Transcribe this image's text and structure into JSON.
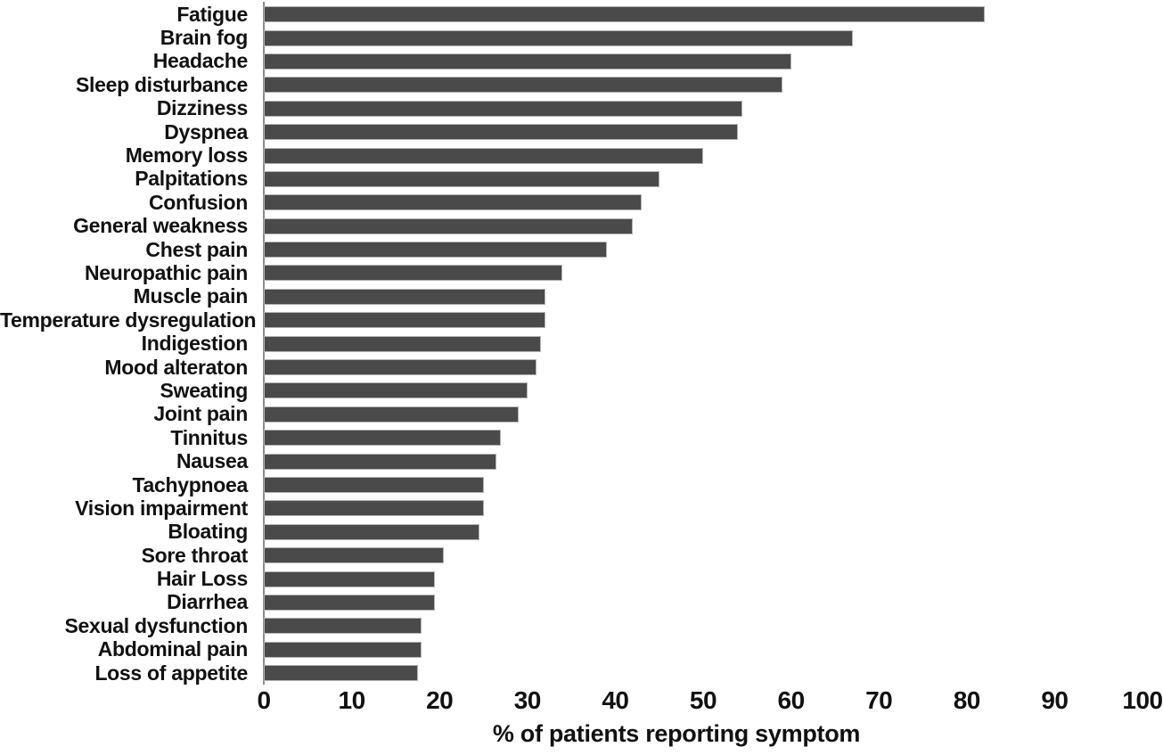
{
  "chart_data": {
    "type": "bar",
    "orientation": "horizontal",
    "title": "",
    "xlabel": "% of patients reporting symptom",
    "ylabel": "",
    "xlim": [
      0,
      100
    ],
    "xticks": [
      0,
      10,
      20,
      30,
      40,
      50,
      60,
      70,
      80,
      90,
      100
    ],
    "grid": false,
    "legend": "none",
    "categories": [
      "Fatigue",
      "Brain fog",
      "Headache",
      "Sleep disturbance",
      "Dizziness",
      "Dyspnea",
      "Memory loss",
      "Palpitations",
      "Confusion",
      "General weakness",
      "Chest pain",
      "Neuropathic pain",
      "Muscle pain",
      "Temperature dysregulation",
      "Indigestion",
      "Mood alteraton",
      "Sweating",
      "Joint pain",
      "Tinnitus",
      "Nausea",
      "Tachypnoea",
      "Vision impairment",
      "Bloating",
      "Sore throat",
      "Hair Loss",
      "Diarrhea",
      "Sexual dysfunction",
      "Abdominal pain",
      "Loss of appetite"
    ],
    "values": [
      82,
      67,
      60,
      59,
      54.5,
      54,
      50,
      45,
      43,
      42,
      39,
      34,
      32,
      32,
      31.5,
      31,
      30,
      29,
      27,
      26.5,
      25,
      25,
      24.5,
      20.5,
      19.5,
      19.5,
      18,
      18,
      17.5
    ],
    "colors": {
      "bar_fill": "#4a4a4a",
      "bar_border": "#b3b3b3",
      "axis_line": "#8c8c8c",
      "text": "#111111",
      "background": "#ffffff"
    }
  }
}
